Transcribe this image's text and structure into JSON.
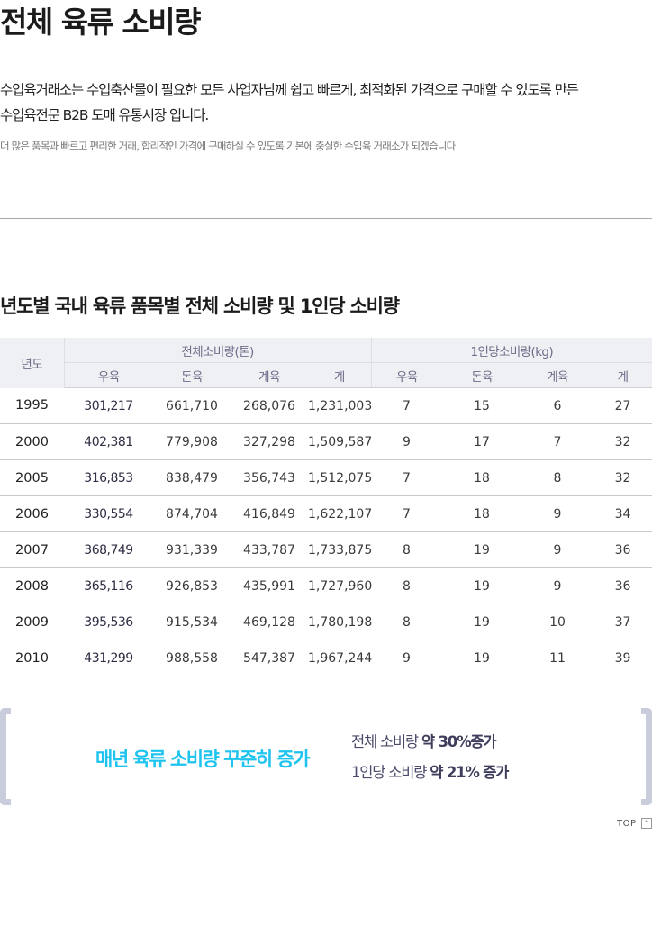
{
  "page": {
    "title": "전체 육류 소비량"
  },
  "intro": {
    "line1": "수입육거래소는 수입축산물이 필요한 모든 사업자님께 쉽고 빠르게, 최적화된 가격으로 구매할 수 있도록 만든",
    "line2": "수입육전문 B2B 도매 유통시장 입니다.",
    "sub": "더 많은 품목과 빠르고 편리한 거래, 합리적인 가격에 구매하실 수 있도록 기본에 충실한 수입육 거래소가 되겠습니다"
  },
  "section": {
    "title": "년도별 국내 육류 품목별 전체 소비량 및 1인당 소비량"
  },
  "table": {
    "year_header": "년도",
    "group1_header": "전체소비량(톤)",
    "group2_header": "1인당소비량(kg)",
    "sub_headers": [
      "우육",
      "돈육",
      "계육",
      "계",
      "우육",
      "돈육",
      "계육",
      "계"
    ],
    "rows": [
      [
        "1995",
        "301,217",
        "661,710",
        "268,076",
        "1,231,003",
        "7",
        "15",
        "6",
        "27"
      ],
      [
        "2000",
        "402,381",
        "779,908",
        "327,298",
        "1,509,587",
        "9",
        "17",
        "7",
        "32"
      ],
      [
        "2005",
        "316,853",
        "838,479",
        "356,743",
        "1,512,075",
        "7",
        "18",
        "8",
        "32"
      ],
      [
        "2006",
        "330,554",
        "874,704",
        "416,849",
        "1,622,107",
        "7",
        "18",
        "9",
        "34"
      ],
      [
        "2007",
        "368,749",
        "931,339",
        "433,787",
        "1,733,875",
        "8",
        "19",
        "9",
        "36"
      ],
      [
        "2008",
        "365,116",
        "926,853",
        "435,991",
        "1,727,960",
        "8",
        "19",
        "9",
        "36"
      ],
      [
        "2009",
        "395,536",
        "915,534",
        "469,128",
        "1,780,198",
        "8",
        "19",
        "10",
        "37"
      ],
      [
        "2010",
        "431,299",
        "988,558",
        "547,387",
        "1,967,244",
        "9",
        "19",
        "11",
        "39"
      ]
    ]
  },
  "summary": {
    "headline": "매년 육류 소비량 꾸준히 증가",
    "line1_label": "전체 소비량",
    "line1_value": "약 30%증가",
    "line2_label": "1인당 소비량",
    "line2_value": "약 21% 증가"
  },
  "footer": {
    "top_label": "TOP",
    "top_arrow": "^"
  },
  "colors": {
    "accent": "#1ec3ef",
    "header_bg": "#eef0f3",
    "bracket": "#c9ccda"
  }
}
